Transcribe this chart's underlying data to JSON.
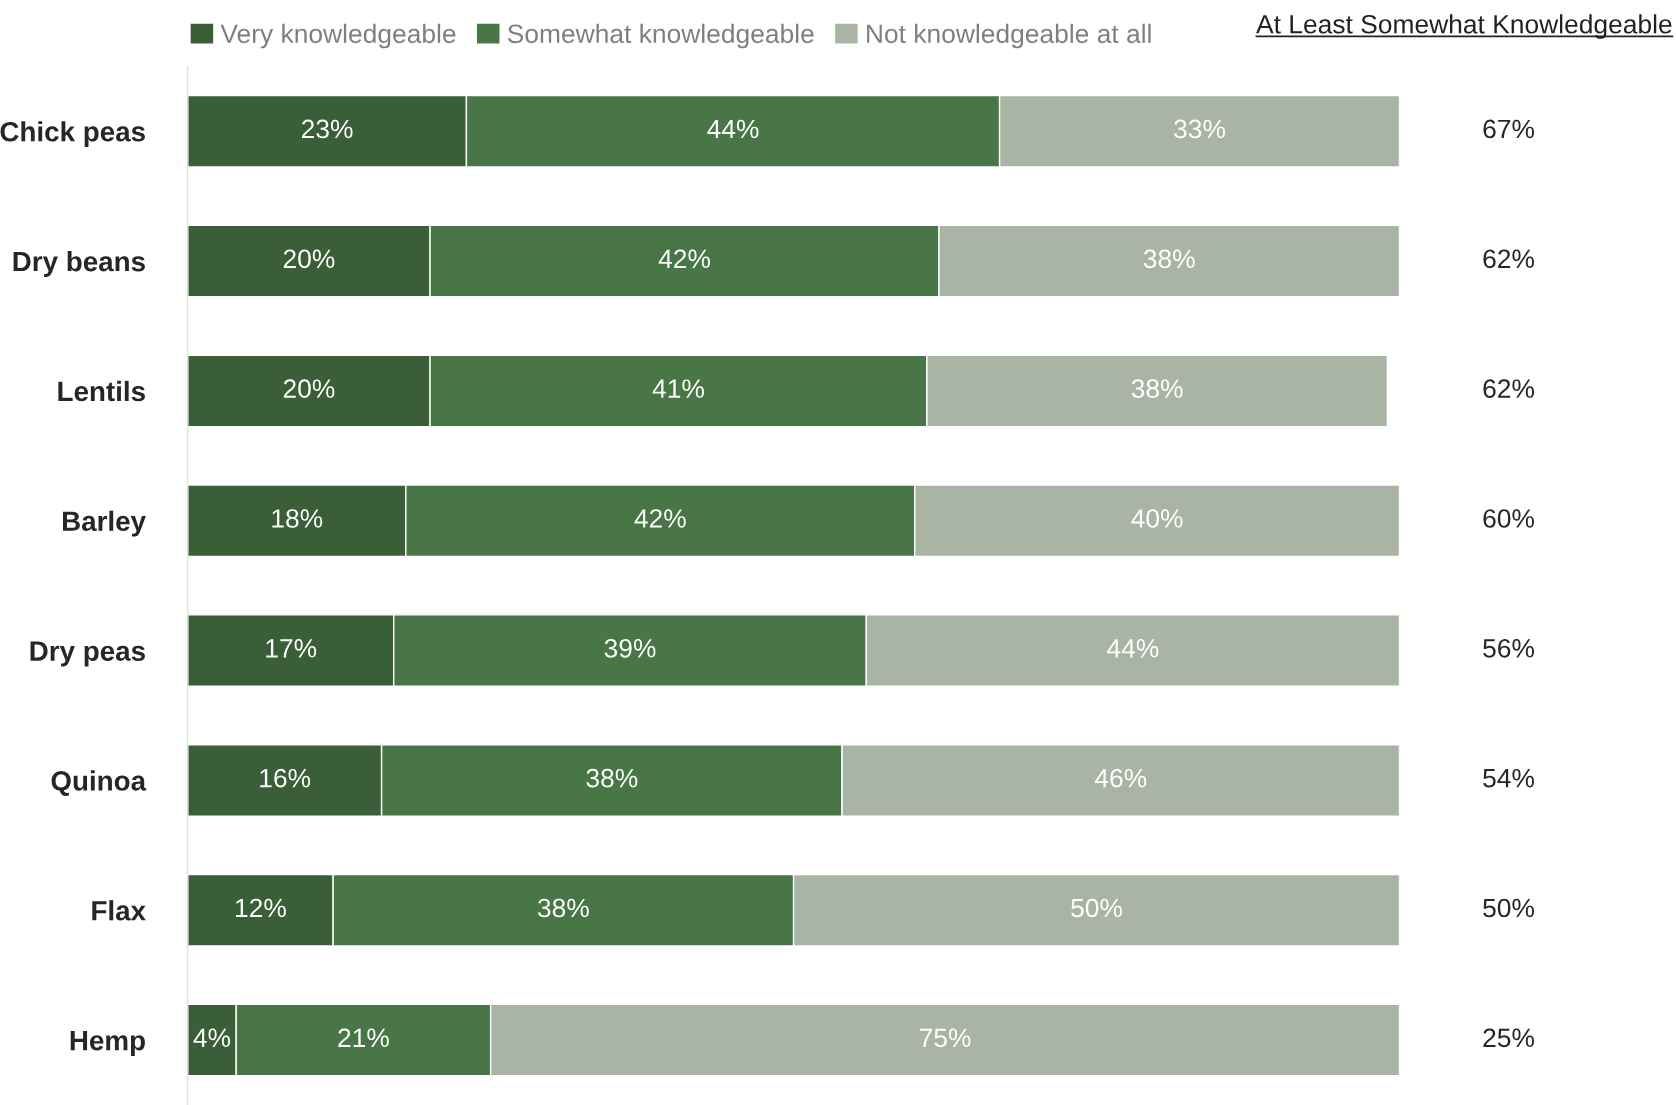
{
  "chart_data": {
    "type": "bar",
    "orientation": "horizontal",
    "stacked": true,
    "legend": "top",
    "grid": false,
    "categories": [
      "Chick peas",
      "Dry beans",
      "Lentils",
      "Barley",
      "Dry peas",
      "Quinoa",
      "Flax",
      "Hemp"
    ],
    "series": [
      {
        "name": "Very knowledgeable",
        "color": "#3a5e38",
        "values": [
          23,
          20,
          20,
          18,
          17,
          16,
          12,
          4
        ],
        "value_labels": [
          "23%",
          "20%",
          "20%",
          "18%",
          "17%",
          "16%",
          "12%",
          "4%"
        ]
      },
      {
        "name": "Somewhat knowledgeable",
        "color": "#487646",
        "values": [
          44,
          42,
          41,
          42,
          39,
          38,
          38,
          21
        ],
        "value_labels": [
          "44%",
          "42%",
          "41%",
          "42%",
          "39%",
          "38%",
          "38%",
          "21%"
        ]
      },
      {
        "name": "Not knowledgeable at all",
        "color": "#a9b4a5",
        "values": [
          33,
          38,
          38,
          40,
          44,
          46,
          50,
          75
        ],
        "value_labels": [
          "33%",
          "38%",
          "38%",
          "40%",
          "44%",
          "46%",
          "50%",
          "75%"
        ]
      }
    ],
    "annotations": [
      "At Least Somewhat Knowledgeable",
      "67%",
      "62%",
      "62%",
      "60%",
      "56%",
      "54%",
      "50%",
      "25%"
    ]
  }
}
